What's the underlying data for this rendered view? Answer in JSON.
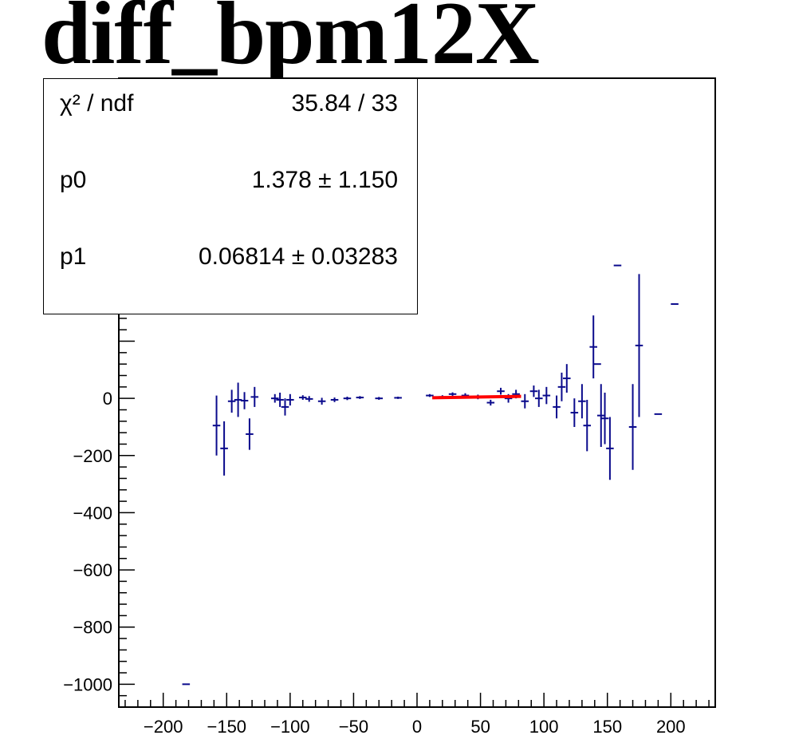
{
  "title": "diff_bpm12X",
  "stats": {
    "chi2_label": "χ² / ndf",
    "chi2_value": "35.84 / 33",
    "p0_label": "p0",
    "p0_value": "1.378 ± 1.150",
    "p1_label": "p1",
    "p1_value": "0.06814 ± 0.03283"
  },
  "colors": {
    "points": "#0a0a8c",
    "fit": "#ff0000",
    "axis": "#000000"
  },
  "chart_data": {
    "type": "scatter",
    "title": "diff_bpm12X",
    "xlabel": "",
    "ylabel": "",
    "xlim": [
      -235,
      235
    ],
    "ylim": [
      -1080,
      1120
    ],
    "x_ticks": [
      -200,
      -150,
      -100,
      -50,
      0,
      50,
      100,
      150,
      200
    ],
    "x_tick_labels": [
      "−200",
      "−150",
      "−100",
      "−50",
      "0",
      "50",
      "100",
      "150",
      "200"
    ],
    "y_ticks": [
      -1000,
      -800,
      -600,
      -400,
      -200,
      0
    ],
    "y_tick_labels": [
      "−1000",
      "−800",
      "−600",
      "−400",
      "−200",
      "0"
    ],
    "series": [
      {
        "points": [
          {
            "x": -182,
            "y": -1000,
            "xerr": 3,
            "yerr": 0
          },
          {
            "x": -158,
            "y": -95,
            "xerr": 3,
            "yerr": 105
          },
          {
            "x": -152,
            "y": -175,
            "xerr": 3,
            "yerr": 95
          },
          {
            "x": -146,
            "y": -10,
            "xerr": 3,
            "yerr": 40
          },
          {
            "x": -141,
            "y": -5,
            "xerr": 3,
            "yerr": 60
          },
          {
            "x": -136,
            "y": -8,
            "xerr": 3,
            "yerr": 30
          },
          {
            "x": -132,
            "y": -125,
            "xerr": 3,
            "yerr": 55
          },
          {
            "x": -128,
            "y": 5,
            "xerr": 3,
            "yerr": 35
          },
          {
            "x": -112,
            "y": 0,
            "xerr": 3,
            "yerr": 15
          },
          {
            "x": -108,
            "y": -5,
            "xerr": 3,
            "yerr": 25
          },
          {
            "x": -104,
            "y": -30,
            "xerr": 3,
            "yerr": 30
          },
          {
            "x": -100,
            "y": -5,
            "xerr": 3,
            "yerr": 20
          },
          {
            "x": -90,
            "y": 3,
            "xerr": 3,
            "yerr": 8
          },
          {
            "x": -85,
            "y": -2,
            "xerr": 3,
            "yerr": 10
          },
          {
            "x": -75,
            "y": -10,
            "xerr": 3,
            "yerr": 12
          },
          {
            "x": -65,
            "y": -5,
            "xerr": 3,
            "yerr": 8
          },
          {
            "x": -55,
            "y": 0,
            "xerr": 3,
            "yerr": 6
          },
          {
            "x": -45,
            "y": 3,
            "xerr": 3,
            "yerr": 5
          },
          {
            "x": -30,
            "y": 0,
            "xerr": 3,
            "yerr": 5
          },
          {
            "x": -15,
            "y": 2,
            "xerr": 3,
            "yerr": 4
          },
          {
            "x": 10,
            "y": 10,
            "xerr": 3,
            "yerr": 5
          },
          {
            "x": 20,
            "y": 5,
            "xerr": 3,
            "yerr": 6
          },
          {
            "x": 28,
            "y": 15,
            "xerr": 3,
            "yerr": 6
          },
          {
            "x": 38,
            "y": 10,
            "xerr": 3,
            "yerr": 8
          },
          {
            "x": 48,
            "y": 5,
            "xerr": 3,
            "yerr": 8
          },
          {
            "x": 58,
            "y": -15,
            "xerr": 3,
            "yerr": 10
          },
          {
            "x": 66,
            "y": 25,
            "xerr": 3,
            "yerr": 12
          },
          {
            "x": 72,
            "y": 0,
            "xerr": 3,
            "yerr": 15
          },
          {
            "x": 78,
            "y": 15,
            "xerr": 3,
            "yerr": 15
          },
          {
            "x": 85,
            "y": -10,
            "xerr": 3,
            "yerr": 25
          },
          {
            "x": 92,
            "y": 25,
            "xerr": 3,
            "yerr": 20
          },
          {
            "x": 96,
            "y": 0,
            "xerr": 3,
            "yerr": 30
          },
          {
            "x": 102,
            "y": 10,
            "xerr": 3,
            "yerr": 30
          },
          {
            "x": 110,
            "y": -30,
            "xerr": 3,
            "yerr": 40
          },
          {
            "x": 114,
            "y": 40,
            "xerr": 3,
            "yerr": 50
          },
          {
            "x": 118,
            "y": 70,
            "xerr": 3,
            "yerr": 50
          },
          {
            "x": 124,
            "y": -50,
            "xerr": 3,
            "yerr": 50
          },
          {
            "x": 130,
            "y": -10,
            "xerr": 3,
            "yerr": 60
          },
          {
            "x": 134,
            "y": -95,
            "xerr": 3,
            "yerr": 90
          },
          {
            "x": 139,
            "y": 180,
            "xerr": 3,
            "yerr": 110
          },
          {
            "x": 142,
            "y": 120,
            "xerr": 3,
            "yerr": 0
          },
          {
            "x": 145,
            "y": -60,
            "xerr": 3,
            "yerr": 110
          },
          {
            "x": 148,
            "y": -70,
            "xerr": 3,
            "yerr": 90
          },
          {
            "x": 152,
            "y": -175,
            "xerr": 3,
            "yerr": 110
          },
          {
            "x": 158,
            "y": 465,
            "xerr": 3,
            "yerr": 0
          },
          {
            "x": 170,
            "y": -100,
            "xerr": 3,
            "yerr": 150
          },
          {
            "x": 175,
            "y": 185,
            "xerr": 3,
            "yerr": 250
          },
          {
            "x": 190,
            "y": -55,
            "xerr": 3,
            "yerr": 0
          },
          {
            "x": 203,
            "y": 330,
            "xerr": 3,
            "yerr": 0
          }
        ]
      }
    ],
    "fit": {
      "function": "pol1",
      "p0": 1.378,
      "p1": 0.06814,
      "x_range": [
        12,
        82
      ]
    }
  }
}
